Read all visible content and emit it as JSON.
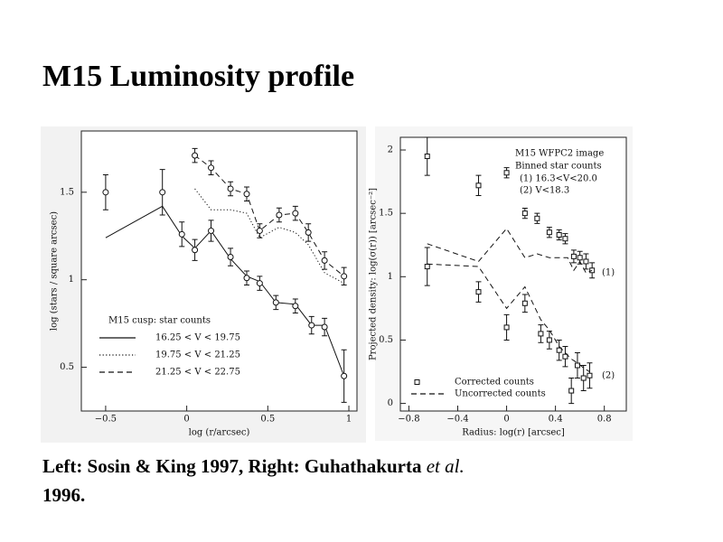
{
  "title": "M15 Luminosity profile",
  "caption": {
    "text": "Left: Sosin & King 1997, Right: Guhathakurta",
    "emph": "et al.",
    "year": "1996."
  },
  "chart_data": [
    {
      "type": "line",
      "xlabel": "log (r/arcsec)",
      "ylabel": "log (stars / square arcsec)",
      "xlim": [
        -0.65,
        1.05
      ],
      "ylim": [
        0.25,
        1.85
      ],
      "xticks": [
        {
          "value": -0.5,
          "label": "−0.5"
        },
        0,
        0.5,
        1
      ],
      "yticks": [
        0.5,
        1,
        1.5
      ],
      "legend_title": "M15 cusp: star counts",
      "series": [
        {
          "name": "16.25 < V < 19.75",
          "line": "solid",
          "color": "#111111",
          "x": [
            -0.5,
            -0.15,
            -0.03,
            0.05,
            0.15,
            0.27,
            0.37,
            0.45,
            0.55,
            0.67,
            0.77,
            0.85,
            0.97
          ],
          "values": [
            1.24,
            1.42,
            1.25,
            1.18,
            1.28,
            1.12,
            1.02,
            0.99,
            0.87,
            0.86,
            0.74,
            0.74,
            0.45
          ]
        },
        {
          "name": "19.75 < V < 21.25",
          "line": "dotted",
          "color": "#111111",
          "x": [
            0.05,
            0.15,
            0.27,
            0.37,
            0.45,
            0.57,
            0.67,
            0.75,
            0.85,
            0.97
          ],
          "values": [
            1.52,
            1.4,
            1.4,
            1.38,
            1.24,
            1.3,
            1.27,
            1.2,
            1.04,
            0.98
          ]
        },
        {
          "name": "21.25 < V < 22.75",
          "line": "dashed",
          "color": "#111111",
          "marker": "circle",
          "x": [
            0.05,
            0.15,
            0.27,
            0.37,
            0.45,
            0.57,
            0.67,
            0.75,
            0.85,
            0.97
          ],
          "values": [
            1.71,
            1.64,
            1.52,
            1.49,
            1.28,
            1.37,
            1.38,
            1.27,
            1.11,
            1.02
          ],
          "errors": [
            0.04,
            0.04,
            0.04,
            0.04,
            0.04,
            0.04,
            0.04,
            0.05,
            0.05,
            0.05
          ]
        },
        {
          "line": "none",
          "color": "#111111",
          "marker": "circle",
          "x": [
            -0.5,
            -0.15,
            -0.03,
            0.05,
            0.15,
            0.27,
            0.37,
            0.45,
            0.55,
            0.67,
            0.77,
            0.85,
            0.97
          ],
          "values": [
            1.5,
            1.5,
            1.26,
            1.17,
            1.28,
            1.13,
            1.01,
            0.98,
            0.87,
            0.85,
            0.74,
            0.73,
            0.45
          ],
          "errors": [
            0.1,
            0.13,
            0.07,
            0.06,
            0.06,
            0.05,
            0.04,
            0.04,
            0.04,
            0.04,
            0.05,
            0.05,
            0.15
          ]
        }
      ]
    },
    {
      "type": "line",
      "xlabel": "Radius: log(r) [arcsec]",
      "ylabel": "Projected density: log(σ(r)) [arcsec⁻²]",
      "xlim": [
        -0.87,
        0.98
      ],
      "ylim": [
        -0.06,
        2.1
      ],
      "xticks": [
        {
          "value": -0.8,
          "label": "−0.8"
        },
        {
          "value": -0.4,
          "label": "−0.4"
        },
        0,
        0.4,
        0.8
      ],
      "yticks": [
        0,
        0.5,
        1,
        1.5,
        2
      ],
      "annotations": [
        "M15 WFPC2 image",
        "Binned star counts",
        "(1) 16.3<V<20.0",
        "(2) V<18.3",
        "(1)",
        "(2)"
      ],
      "series": [
        {
          "name": "Corrected counts",
          "line": "none",
          "color": "#111111",
          "marker": "square",
          "x": [
            -0.65,
            -0.23,
            0,
            0.15,
            0.25,
            0.35,
            0.43,
            0.48,
            0.55,
            0.6,
            0.65,
            0.7
          ],
          "values": [
            1.95,
            1.72,
            1.82,
            1.5,
            1.46,
            1.35,
            1.33,
            1.3,
            1.16,
            1.15,
            1.12,
            1.05
          ],
          "errors": [
            0.15,
            0.08,
            0.04,
            0.04,
            0.04,
            0.04,
            0.04,
            0.04,
            0.05,
            0.05,
            0.06,
            0.06
          ]
        },
        {
          "name": "Uncorrected counts",
          "line": "dashed",
          "color": "#111111",
          "x": [
            -0.65,
            -0.23,
            0,
            0.15,
            0.25,
            0.35,
            0.43,
            0.5,
            0.55,
            0.6,
            0.65,
            0.7
          ],
          "values": [
            1.26,
            1.12,
            1.38,
            1.15,
            1.18,
            1.15,
            1.15,
            1.15,
            1.05,
            1.12,
            1.03,
            1.05
          ]
        },
        {
          "line": "none",
          "color": "#111111",
          "marker": "square",
          "x": [
            -0.65,
            -0.23,
            0,
            0.15,
            0.28,
            0.35,
            0.43,
            0.48,
            0.53,
            0.58,
            0.63,
            0.68
          ],
          "values": [
            1.08,
            0.88,
            0.6,
            0.79,
            0.55,
            0.5,
            0.42,
            0.37,
            0.1,
            0.3,
            0.2,
            0.22
          ],
          "errors": [
            0.15,
            0.08,
            0.1,
            0.07,
            0.07,
            0.07,
            0.08,
            0.08,
            0.1,
            0.1,
            0.1,
            0.1
          ]
        },
        {
          "line": "dashed",
          "color": "#111111",
          "x": [
            -0.65,
            -0.23,
            0,
            0.15,
            0.28,
            0.35,
            0.43,
            0.48,
            0.53,
            0.58,
            0.63,
            0.68
          ],
          "values": [
            1.1,
            1.08,
            0.75,
            0.92,
            0.66,
            0.58,
            0.45,
            0.4,
            0.35,
            0.32,
            0.28,
            0.25
          ]
        }
      ]
    }
  ]
}
